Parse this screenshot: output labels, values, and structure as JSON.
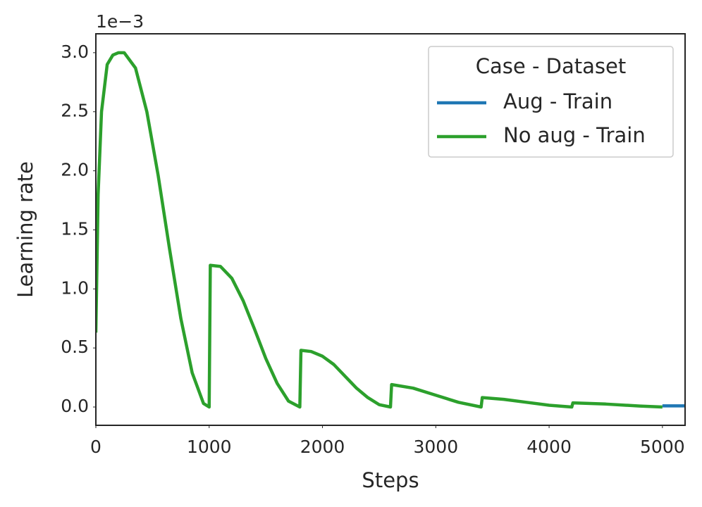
{
  "chart_data": {
    "type": "line",
    "x_label": "Steps",
    "y_label": "Learning rate",
    "y_offset_label": "1e−3",
    "legend_title": "Case - Dataset",
    "legend_position": "upper right",
    "grid": false,
    "xlim": [
      0,
      5200
    ],
    "xticks": [
      0,
      1000,
      2000,
      3000,
      4000,
      5000
    ],
    "ylim": [
      -0.155,
      3.16
    ],
    "yticks": [
      {
        "value": 0,
        "label": "0.0"
      },
      0.5,
      {
        "value": 1,
        "label": "1.0"
      },
      1.5,
      {
        "value": 2,
        "label": "2.0"
      },
      2.5,
      {
        "value": 3,
        "label": "3.0"
      }
    ],
    "series": [
      {
        "name": "Aug - Train",
        "color": "#1f77b4",
        "x": [
          5000,
          5200
        ],
        "values": [
          0.01,
          0.01
        ]
      },
      {
        "name": "No aug - Train",
        "color": "#2ca02c",
        "x": [
          0,
          20,
          50,
          100,
          150,
          200,
          250,
          350,
          450,
          550,
          650,
          750,
          850,
          950,
          1000,
          1010,
          1100,
          1200,
          1300,
          1400,
          1500,
          1600,
          1700,
          1800,
          1810,
          1900,
          2000,
          2100,
          2200,
          2300,
          2400,
          2500,
          2600,
          2610,
          2800,
          3000,
          3200,
          3400,
          3410,
          3600,
          3800,
          4000,
          4200,
          4210,
          4500,
          4800,
          5000
        ],
        "values": [
          0.63,
          1.8,
          2.5,
          2.9,
          2.98,
          3.0,
          3.0,
          2.87,
          2.5,
          1.96,
          1.34,
          0.75,
          0.29,
          0.03,
          0,
          1.2,
          1.19,
          1.09,
          0.9,
          0.66,
          0.41,
          0.2,
          0.05,
          0,
          0.48,
          0.47,
          0.43,
          0.36,
          0.26,
          0.16,
          0.08,
          0.02,
          0,
          0.19,
          0.16,
          0.1,
          0.04,
          0,
          0.08,
          0.065,
          0.04,
          0.015,
          0,
          0.035,
          0.025,
          0.008,
          0
        ]
      }
    ]
  }
}
